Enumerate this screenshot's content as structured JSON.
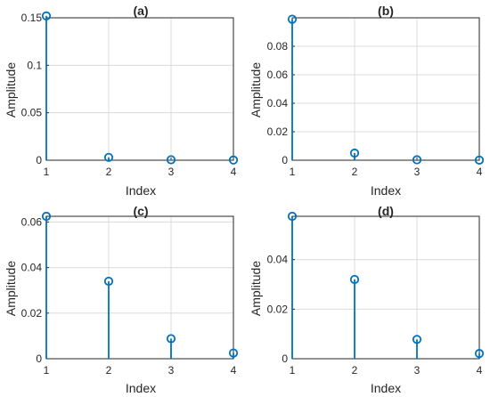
{
  "chart_data": [
    {
      "type": "stem",
      "title": "(a)",
      "xlabel": "Index",
      "ylabel": "Amplitude",
      "x": [
        1,
        2,
        3,
        4
      ],
      "values": [
        0.152,
        0.003,
        0.0005,
        0.0002
      ],
      "xlim": [
        1,
        4
      ],
      "ylim": [
        0,
        0.15
      ],
      "xticks": [
        "1",
        "2",
        "3",
        "4"
      ],
      "yticks": [
        0,
        0.05,
        0.1,
        0.15
      ],
      "yticklabels": [
        "0",
        "0.05",
        "0.1",
        "0.15"
      ],
      "grid": true,
      "color": "#0072bd"
    },
    {
      "type": "stem",
      "title": "(b)",
      "xlabel": "Index",
      "ylabel": "Amplitude",
      "x": [
        1,
        2,
        3,
        4
      ],
      "values": [
        0.099,
        0.005,
        0.0003,
        0.0001
      ],
      "xlim": [
        1,
        4
      ],
      "ylim": [
        0,
        0.1
      ],
      "xticks": [
        "1",
        "2",
        "3",
        "4"
      ],
      "yticks": [
        0,
        0.02,
        0.04,
        0.06,
        0.08
      ],
      "yticklabels": [
        "0",
        "0.02",
        "0.04",
        "0.06",
        "0.08"
      ],
      "grid": true,
      "color": "#0072bd"
    },
    {
      "type": "stem",
      "title": "(c)",
      "xlabel": "Index",
      "ylabel": "Amplitude",
      "x": [
        1,
        2,
        3,
        4
      ],
      "values": [
        0.0625,
        0.034,
        0.0088,
        0.0025
      ],
      "xlim": [
        1,
        4
      ],
      "ylim": [
        0,
        0.0625
      ],
      "xticks": [
        "1",
        "2",
        "3",
        "4"
      ],
      "yticks": [
        0,
        0.02,
        0.04,
        0.06
      ],
      "yticklabels": [
        "0",
        "0.02",
        "0.04",
        "0.06"
      ],
      "grid": true,
      "color": "#0072bd"
    },
    {
      "type": "stem",
      "title": "(d)",
      "xlabel": "Index",
      "ylabel": "Amplitude",
      "x": [
        1,
        2,
        3,
        4
      ],
      "values": [
        0.0575,
        0.032,
        0.0078,
        0.0021
      ],
      "xlim": [
        1,
        4
      ],
      "ylim": [
        0,
        0.0575
      ],
      "xticks": [
        "1",
        "2",
        "3",
        "4"
      ],
      "yticks": [
        0,
        0.02,
        0.04
      ],
      "yticklabels": [
        "0",
        "0.02",
        "0.04"
      ],
      "grid": true,
      "color": "#0072bd"
    }
  ]
}
